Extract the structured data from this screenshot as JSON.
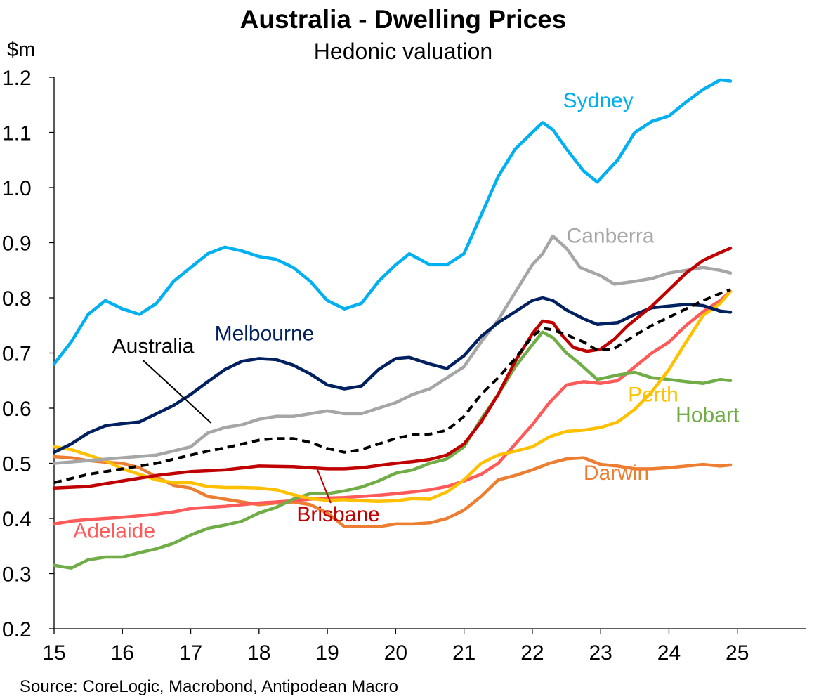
{
  "chart_data": {
    "type": "line",
    "title": "Australia - Dwelling Prices",
    "subtitle": "Hedonic valuation",
    "ylabel": "$m",
    "source": "Source: CoreLogic, Macrobond, Antipodean Macro",
    "ylim": [
      0.2,
      1.2
    ],
    "xlim": [
      15,
      26
    ],
    "y_ticks": [
      "0.2",
      "0.3",
      "0.4",
      "0.5",
      "0.6",
      "0.7",
      "0.8",
      "0.9",
      "1.0",
      "1.1",
      "1.2"
    ],
    "x_ticks": [
      "15",
      "16",
      "17",
      "18",
      "19",
      "20",
      "21",
      "22",
      "23",
      "24",
      "25"
    ],
    "grid": false,
    "series": [
      {
        "name": "Sydney",
        "color": "#00B0F0",
        "dashed": false,
        "x": [
          15,
          15.25,
          15.5,
          15.75,
          16,
          16.25,
          16.5,
          16.75,
          17,
          17.25,
          17.5,
          17.75,
          18,
          18.25,
          18.5,
          18.75,
          19,
          19.25,
          19.5,
          19.75,
          20,
          20.2,
          20.5,
          20.75,
          21,
          21.25,
          21.5,
          21.75,
          22,
          22.15,
          22.3,
          22.5,
          22.75,
          22.95,
          23.25,
          23.5,
          23.75,
          24,
          24.25,
          24.5,
          24.75,
          24.9
        ],
        "y": [
          0.68,
          0.72,
          0.77,
          0.795,
          0.78,
          0.77,
          0.79,
          0.83,
          0.855,
          0.88,
          0.892,
          0.885,
          0.875,
          0.87,
          0.855,
          0.83,
          0.795,
          0.78,
          0.79,
          0.83,
          0.86,
          0.88,
          0.86,
          0.86,
          0.88,
          0.95,
          1.02,
          1.07,
          1.1,
          1.118,
          1.105,
          1.07,
          1.03,
          1.01,
          1.05,
          1.1,
          1.12,
          1.13,
          1.155,
          1.178,
          1.195,
          1.193
        ],
        "label_x": 22.45,
        "label_y": 1.145
      },
      {
        "name": "Canberra",
        "color": "#A6A6A6",
        "dashed": false,
        "x": [
          15,
          15.5,
          16,
          16.5,
          17,
          17.25,
          17.5,
          17.75,
          18,
          18.25,
          18.5,
          18.75,
          19,
          19.25,
          19.5,
          19.75,
          20,
          20.25,
          20.5,
          20.75,
          21,
          21.25,
          21.5,
          21.75,
          22,
          22.15,
          22.3,
          22.5,
          22.7,
          23,
          23.2,
          23.5,
          23.75,
          24,
          24.25,
          24.5,
          24.75,
          24.9
        ],
        "y": [
          0.5,
          0.505,
          0.51,
          0.515,
          0.53,
          0.555,
          0.565,
          0.57,
          0.58,
          0.585,
          0.585,
          0.59,
          0.595,
          0.59,
          0.59,
          0.6,
          0.61,
          0.625,
          0.635,
          0.655,
          0.675,
          0.72,
          0.76,
          0.81,
          0.86,
          0.88,
          0.912,
          0.89,
          0.855,
          0.84,
          0.825,
          0.83,
          0.835,
          0.845,
          0.85,
          0.855,
          0.85,
          0.845
        ],
        "label_x": 22.5,
        "label_y": 0.9
      },
      {
        "name": "Melbourne",
        "color": "#002060",
        "dashed": false,
        "x": [
          15,
          15.25,
          15.5,
          15.75,
          16,
          16.25,
          16.5,
          16.75,
          17,
          17.25,
          17.5,
          17.75,
          18,
          18.25,
          18.5,
          18.75,
          19,
          19.25,
          19.5,
          19.75,
          20,
          20.2,
          20.5,
          20.75,
          21,
          21.25,
          21.5,
          21.75,
          22,
          22.15,
          22.3,
          22.5,
          22.75,
          22.95,
          23.25,
          23.5,
          23.75,
          24,
          24.25,
          24.5,
          24.75,
          24.9
        ],
        "y": [
          0.52,
          0.535,
          0.555,
          0.568,
          0.572,
          0.575,
          0.59,
          0.605,
          0.625,
          0.648,
          0.67,
          0.685,
          0.69,
          0.688,
          0.678,
          0.662,
          0.642,
          0.635,
          0.64,
          0.67,
          0.69,
          0.692,
          0.68,
          0.672,
          0.695,
          0.73,
          0.755,
          0.775,
          0.795,
          0.8,
          0.795,
          0.778,
          0.762,
          0.752,
          0.755,
          0.77,
          0.782,
          0.785,
          0.788,
          0.786,
          0.776,
          0.774
        ],
        "label_x": 17.35,
        "label_y": 0.723
      },
      {
        "name": "Australia",
        "color": "#000000",
        "dashed": true,
        "x": [
          15,
          15.5,
          16,
          16.5,
          17,
          17.25,
          17.5,
          17.75,
          18,
          18.25,
          18.5,
          18.75,
          19,
          19.25,
          19.5,
          19.75,
          20,
          20.25,
          20.5,
          20.75,
          21,
          21.25,
          21.5,
          21.75,
          22,
          22.15,
          22.3,
          22.5,
          22.75,
          22.95,
          23.2,
          23.5,
          23.75,
          24,
          24.25,
          24.5,
          24.75,
          24.9
        ],
        "y": [
          0.465,
          0.48,
          0.49,
          0.5,
          0.515,
          0.522,
          0.528,
          0.535,
          0.542,
          0.545,
          0.545,
          0.538,
          0.527,
          0.52,
          0.525,
          0.535,
          0.545,
          0.552,
          0.553,
          0.56,
          0.585,
          0.625,
          0.655,
          0.69,
          0.73,
          0.745,
          0.742,
          0.733,
          0.72,
          0.705,
          0.708,
          0.732,
          0.75,
          0.765,
          0.78,
          0.795,
          0.808,
          0.815
        ],
        "label_x": 15.85,
        "label_y": 0.7,
        "pointer": [
          [
            16.3,
            0.687
          ],
          [
            17.3,
            0.573
          ]
        ]
      },
      {
        "name": "Brisbane",
        "color": "#C00000",
        "dashed": false,
        "x": [
          15,
          15.5,
          16,
          16.5,
          17,
          17.5,
          18,
          18.5,
          19,
          19.25,
          19.5,
          19.75,
          20,
          20.25,
          20.5,
          20.75,
          21,
          21.25,
          21.5,
          21.75,
          22,
          22.15,
          22.3,
          22.45,
          22.6,
          22.8,
          23,
          23.2,
          23.4,
          23.75,
          24,
          24.25,
          24.5,
          24.75,
          24.9
        ],
        "y": [
          0.455,
          0.458,
          0.468,
          0.478,
          0.485,
          0.488,
          0.495,
          0.494,
          0.49,
          0.49,
          0.492,
          0.496,
          0.5,
          0.503,
          0.507,
          0.515,
          0.535,
          0.575,
          0.625,
          0.685,
          0.735,
          0.758,
          0.755,
          0.73,
          0.71,
          0.703,
          0.707,
          0.725,
          0.75,
          0.785,
          0.815,
          0.845,
          0.868,
          0.882,
          0.89
        ],
        "label_x": 18.55,
        "label_y": 0.395,
        "pointer": [
          [
            18.85,
            0.49
          ],
          [
            19.05,
            0.428
          ]
        ]
      },
      {
        "name": "Hobart",
        "color": "#70AD47",
        "dashed": false,
        "x": [
          15,
          15.25,
          15.5,
          15.75,
          16,
          16.25,
          16.5,
          16.75,
          17,
          17.25,
          17.5,
          17.75,
          18,
          18.25,
          18.5,
          18.75,
          19,
          19.25,
          19.5,
          19.75,
          20,
          20.25,
          20.5,
          20.75,
          21,
          21.25,
          21.5,
          21.75,
          22,
          22.15,
          22.3,
          22.5,
          22.7,
          22.95,
          23.25,
          23.5,
          23.75,
          24,
          24.25,
          24.5,
          24.75,
          24.9
        ],
        "y": [
          0.315,
          0.31,
          0.325,
          0.33,
          0.33,
          0.338,
          0.345,
          0.355,
          0.37,
          0.382,
          0.388,
          0.395,
          0.41,
          0.42,
          0.435,
          0.445,
          0.445,
          0.45,
          0.457,
          0.468,
          0.482,
          0.488,
          0.5,
          0.508,
          0.53,
          0.58,
          0.625,
          0.675,
          0.715,
          0.738,
          0.728,
          0.7,
          0.68,
          0.652,
          0.66,
          0.665,
          0.655,
          0.652,
          0.648,
          0.645,
          0.652,
          0.65
        ],
        "label_x": 24.1,
        "label_y": 0.575
      },
      {
        "name": "Perth",
        "color": "#FFC000",
        "dashed": false,
        "x": [
          15,
          15.25,
          15.5,
          15.75,
          16,
          16.25,
          16.5,
          16.75,
          17,
          17.25,
          17.5,
          17.75,
          18,
          18.25,
          18.5,
          18.75,
          19,
          19.25,
          19.5,
          19.75,
          20,
          20.25,
          20.5,
          20.75,
          21,
          21.25,
          21.5,
          21.75,
          22,
          22.25,
          22.5,
          22.75,
          23,
          23.25,
          23.5,
          23.75,
          24,
          24.25,
          24.5,
          24.75,
          24.9
        ],
        "y": [
          0.53,
          0.525,
          0.515,
          0.505,
          0.49,
          0.48,
          0.47,
          0.465,
          0.465,
          0.458,
          0.456,
          0.456,
          0.455,
          0.452,
          0.443,
          0.436,
          0.433,
          0.434,
          0.432,
          0.431,
          0.432,
          0.436,
          0.435,
          0.448,
          0.47,
          0.5,
          0.515,
          0.522,
          0.53,
          0.548,
          0.558,
          0.56,
          0.565,
          0.575,
          0.598,
          0.63,
          0.67,
          0.72,
          0.768,
          0.79,
          0.812
        ],
        "label_x": 23.4,
        "label_y": 0.612
      },
      {
        "name": "Darwin",
        "color": "#ED7D31",
        "dashed": false,
        "x": [
          15,
          15.25,
          15.5,
          15.75,
          16,
          16.25,
          16.5,
          16.75,
          17,
          17.25,
          17.5,
          17.75,
          18,
          18.25,
          18.5,
          18.75,
          19,
          19.25,
          19.5,
          19.75,
          20,
          20.25,
          20.5,
          20.75,
          21,
          21.25,
          21.5,
          21.75,
          22,
          22.25,
          22.5,
          22.75,
          23,
          23.25,
          23.5,
          23.75,
          24,
          24.25,
          24.5,
          24.75,
          24.9
        ],
        "y": [
          0.512,
          0.51,
          0.505,
          0.502,
          0.5,
          0.492,
          0.475,
          0.46,
          0.455,
          0.44,
          0.435,
          0.43,
          0.425,
          0.428,
          0.43,
          0.425,
          0.41,
          0.385,
          0.385,
          0.385,
          0.39,
          0.39,
          0.392,
          0.4,
          0.415,
          0.44,
          0.47,
          0.478,
          0.488,
          0.5,
          0.508,
          0.51,
          0.498,
          0.495,
          0.49,
          0.49,
          0.492,
          0.495,
          0.498,
          0.495,
          0.497
        ],
        "label_x": 22.75,
        "label_y": 0.47
      },
      {
        "name": "Adelaide",
        "color": "#FF5A5A",
        "dashed": false,
        "x": [
          15,
          15.25,
          15.5,
          15.75,
          16,
          16.25,
          16.5,
          16.75,
          17,
          17.25,
          17.5,
          17.75,
          18,
          18.25,
          18.5,
          18.75,
          19,
          19.25,
          19.5,
          19.75,
          20,
          20.25,
          20.5,
          20.75,
          21,
          21.25,
          21.5,
          21.75,
          22,
          22.25,
          22.5,
          22.75,
          23,
          23.25,
          23.5,
          23.75,
          24,
          24.25,
          24.5,
          24.75,
          24.9
        ],
        "y": [
          0.39,
          0.395,
          0.398,
          0.4,
          0.402,
          0.405,
          0.408,
          0.412,
          0.418,
          0.42,
          0.422,
          0.425,
          0.428,
          0.43,
          0.432,
          0.435,
          0.437,
          0.438,
          0.44,
          0.442,
          0.445,
          0.448,
          0.452,
          0.458,
          0.468,
          0.48,
          0.5,
          0.535,
          0.57,
          0.61,
          0.642,
          0.648,
          0.645,
          0.65,
          0.675,
          0.7,
          0.72,
          0.75,
          0.775,
          0.795,
          0.812
        ],
        "label_x": 15.28,
        "label_y": 0.365
      }
    ]
  }
}
